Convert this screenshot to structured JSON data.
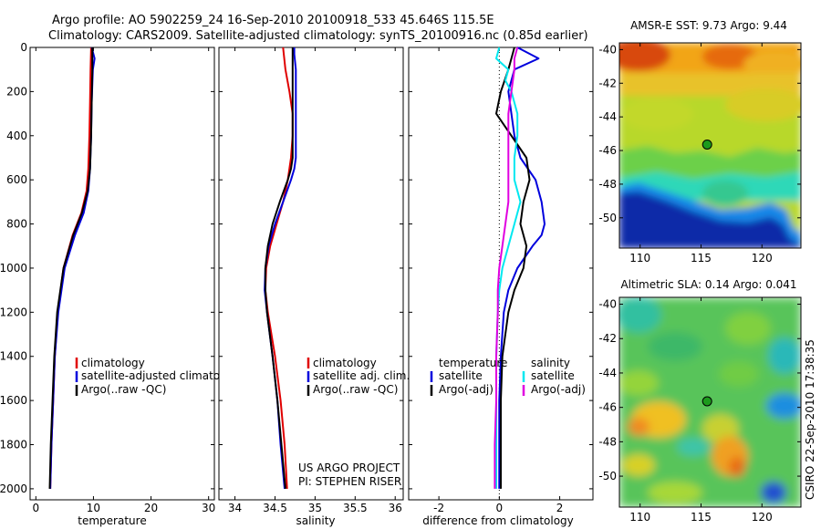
{
  "figure": {
    "title_line1": "Argo profile: AO 5902259_24 16-Sep-2010 20100918_533 45.646S 115.5E",
    "title_line2": "Climatology: CARS2009. Satellite-adjusted climatology: synTS_20100916.nc (0.85d earlier)",
    "credit": "CSIRO 22-Sep-2010 17:38:35",
    "project_line1": "US ARGO PROJECT",
    "project_line2": "PI: STEPHEN RISER"
  },
  "colors": {
    "red": "#e00000",
    "blue": "#0000dd",
    "black": "#000000",
    "cyan": "#00e8f0",
    "magenta": "#e000e0"
  },
  "chart_data": [
    {
      "type": "line",
      "name": "temperature",
      "xlabel": "temperature",
      "xlim": [
        -1,
        31
      ],
      "ylim": [
        2050,
        0
      ],
      "xticks": [
        0,
        10,
        20,
        30
      ],
      "yticks": [
        0,
        200,
        400,
        600,
        800,
        1000,
        1200,
        1400,
        1600,
        1800,
        2000
      ],
      "legend": [
        "climatology",
        "satellite-adjusted climatology",
        "Argo(..raw -QC)"
      ],
      "series": [
        {
          "name": "climatology",
          "color": "red",
          "depth": [
            0,
            100,
            250,
            400,
            550,
            650,
            750,
            850,
            1000,
            1200,
            1400,
            1600,
            1800,
            2000
          ],
          "values": [
            9.6,
            9.5,
            9.4,
            9.3,
            9.1,
            8.8,
            7.9,
            6.4,
            4.8,
            3.8,
            3.3,
            3.0,
            2.7,
            2.5
          ]
        },
        {
          "name": "satellite-adjusted climatology",
          "color": "blue",
          "depth": [
            0,
            50,
            100,
            250,
            400,
            550,
            650,
            750,
            850,
            1000,
            1200,
            1400,
            1600,
            1800,
            2000
          ],
          "values": [
            9.7,
            10.2,
            9.9,
            9.7,
            9.6,
            9.4,
            9.1,
            8.3,
            6.8,
            5.0,
            3.9,
            3.3,
            3.0,
            2.7,
            2.5
          ]
        },
        {
          "name": "Argo(..raw -QC)",
          "color": "black",
          "depth": [
            0,
            100,
            250,
            400,
            550,
            650,
            750,
            850,
            1000,
            1200,
            1400,
            1600,
            1800,
            2000
          ],
          "values": [
            9.8,
            9.8,
            9.7,
            9.6,
            9.4,
            9.0,
            8.0,
            6.5,
            4.8,
            3.7,
            3.2,
            2.9,
            2.6,
            2.4
          ]
        }
      ]
    },
    {
      "type": "line",
      "name": "salinity",
      "xlabel": "salinity",
      "xlim": [
        33.8,
        36.1
      ],
      "ylim": [
        2050,
        0
      ],
      "xticks": [
        34,
        34.5,
        35,
        35.5,
        36
      ],
      "xticklabels": [
        "34",
        "34.5",
        "35",
        "35.5",
        "36"
      ],
      "legend": [
        "climatology",
        "satellite adj. clim.",
        "Argo(..raw -QC)"
      ],
      "series": [
        {
          "name": "climatology",
          "color": "red",
          "depth": [
            0,
            100,
            200,
            300,
            400,
            500,
            600,
            700,
            800,
            900,
            1000,
            1100,
            1200,
            1400,
            1600,
            1800,
            2000
          ],
          "values": [
            34.6,
            34.63,
            34.68,
            34.72,
            34.72,
            34.7,
            34.66,
            34.6,
            34.52,
            34.44,
            34.39,
            34.38,
            34.41,
            34.5,
            34.57,
            34.62,
            34.65
          ]
        },
        {
          "name": "satellite adj. clim.",
          "color": "blue",
          "depth": [
            0,
            30,
            100,
            200,
            300,
            400,
            500,
            550,
            600,
            700,
            800,
            900,
            1000,
            1100,
            1200,
            1400,
            1600,
            1800,
            2000
          ],
          "values": [
            34.74,
            34.74,
            34.76,
            34.76,
            34.76,
            34.76,
            34.76,
            34.74,
            34.7,
            34.6,
            34.5,
            34.42,
            34.38,
            34.37,
            34.4,
            34.47,
            34.53,
            34.57,
            34.62
          ]
        },
        {
          "name": "Argo(..raw -QC)",
          "color": "black",
          "depth": [
            0,
            100,
            200,
            300,
            400,
            500,
            550,
            600,
            700,
            800,
            900,
            1000,
            1100,
            1200,
            1400,
            1600,
            1800,
            2000
          ],
          "values": [
            34.72,
            34.72,
            34.72,
            34.72,
            34.72,
            34.72,
            34.7,
            34.66,
            34.56,
            34.47,
            34.41,
            34.38,
            34.38,
            34.4,
            34.47,
            34.53,
            34.58,
            34.63
          ]
        }
      ]
    },
    {
      "type": "line",
      "name": "difference",
      "xlabel": "difference from climatology",
      "xlim": [
        -3,
        3.1
      ],
      "ylim": [
        2050,
        0
      ],
      "xticks": [
        -2,
        0,
        2
      ],
      "legend_temperature_title": "temperature",
      "legend_salinity_title": "salinity",
      "legend_temperature": [
        "satellite",
        "Argo(-adj)"
      ],
      "legend_salinity": [
        "satellite",
        "Argo(-adj)"
      ],
      "series": [
        {
          "name": "temperature satellite",
          "color": "blue",
          "depth": [
            0,
            50,
            100,
            150,
            200,
            300,
            400,
            500,
            600,
            700,
            800,
            850,
            900,
            1000,
            1100,
            1200,
            1400,
            1600,
            1800,
            2000
          ],
          "values": [
            0.6,
            1.3,
            0.5,
            0.4,
            0.3,
            0.4,
            0.5,
            0.7,
            1.2,
            1.4,
            1.5,
            1.4,
            1.1,
            0.6,
            0.3,
            0.15,
            0.05,
            0.0,
            0.0,
            0.0
          ]
        },
        {
          "name": "temperature Argo(-adj)",
          "color": "black",
          "depth": [
            0,
            50,
            100,
            200,
            300,
            400,
            500,
            600,
            700,
            800,
            900,
            1000,
            1100,
            1200,
            1400,
            1600,
            1800,
            2000
          ],
          "values": [
            0.5,
            0.4,
            0.3,
            0.05,
            -0.1,
            0.4,
            0.9,
            1.0,
            0.8,
            0.7,
            0.9,
            0.8,
            0.5,
            0.3,
            0.1,
            0.05,
            0.05,
            0.05
          ]
        },
        {
          "name": "salinity satellite",
          "color": "cyan",
          "depth": [
            0,
            50,
            100,
            150,
            200,
            300,
            400,
            500,
            600,
            700,
            800,
            900,
            1000,
            1100,
            1200,
            1400,
            1600,
            1800,
            2000
          ],
          "values": [
            0.0,
            -0.1,
            0.3,
            0.2,
            0.4,
            0.6,
            0.6,
            0.5,
            0.5,
            0.7,
            0.5,
            0.3,
            0.1,
            0.0,
            -0.05,
            -0.1,
            -0.1,
            -0.1,
            -0.1
          ]
        },
        {
          "name": "salinity Argo(-adj)",
          "color": "magenta",
          "depth": [
            0,
            50,
            100,
            200,
            300,
            400,
            500,
            600,
            700,
            800,
            900,
            1000,
            1100,
            1200,
            1400,
            1600,
            1800,
            2000
          ],
          "values": [
            0.6,
            0.5,
            0.5,
            0.4,
            0.3,
            0.3,
            0.3,
            0.3,
            0.3,
            0.2,
            0.1,
            0.0,
            -0.05,
            -0.05,
            -0.1,
            -0.1,
            -0.15,
            -0.15
          ]
        }
      ]
    },
    {
      "type": "heatmap",
      "name": "sst_map",
      "title": "AMSR-E SST: 9.73  Argo: 9.44",
      "xlim": [
        108.3,
        123.2
      ],
      "ylim": [
        -51.8,
        -39.6
      ],
      "xticks": [
        110,
        115,
        120
      ],
      "yticks": [
        -40,
        -42,
        -44,
        -46,
        -48,
        -50
      ],
      "marker": {
        "lon": 115.5,
        "lat": -45.646
      }
    },
    {
      "type": "heatmap",
      "name": "sla_map",
      "title": "Altimetric SLA: 0.14  Argo: 0.041",
      "xlim": [
        108.3,
        123.2
      ],
      "ylim": [
        -51.8,
        -39.6
      ],
      "xticks": [
        110,
        115,
        120
      ],
      "yticks": [
        -40,
        -42,
        -44,
        -46,
        -48,
        -50
      ],
      "marker": {
        "lon": 115.5,
        "lat": -45.646
      }
    }
  ]
}
